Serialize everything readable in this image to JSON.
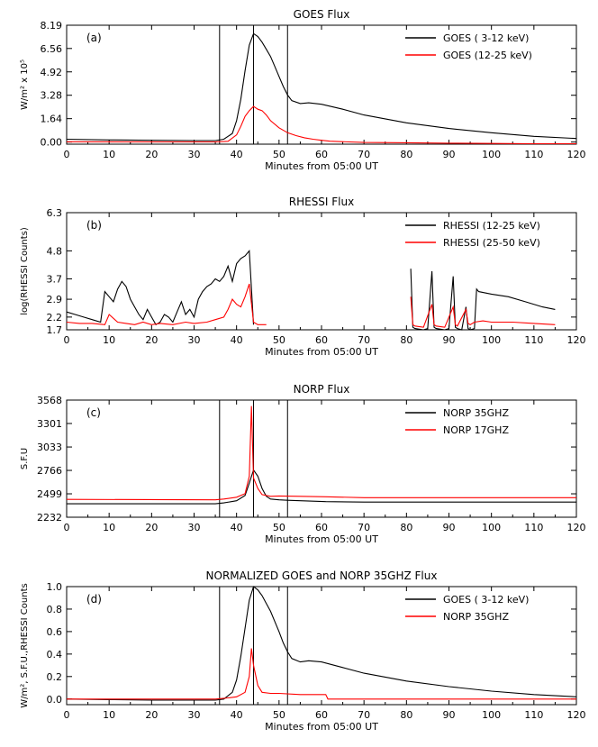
{
  "chart_data": [
    {
      "id": "a",
      "type": "line",
      "panel_label": "(a)",
      "title": "GOES Flux",
      "xlabel": "Minutes from 05:00 UT",
      "ylabel": "W/m² x 10⁵",
      "xlim": [
        0,
        120
      ],
      "ylim": [
        -0.15,
        8.19
      ],
      "xticks": [
        0,
        10,
        20,
        30,
        40,
        50,
        60,
        70,
        80,
        90,
        100,
        110,
        120
      ],
      "yticks": [
        "0.00",
        "1.64",
        "3.28",
        "4.92",
        "6.56",
        "8.19"
      ],
      "vlines": [
        36,
        44,
        52
      ],
      "legend": "top-right",
      "series": [
        {
          "name": "GOES ( 3-12 keV)",
          "color": "#000000",
          "x": [
            0,
            10,
            20,
            30,
            35,
            37,
            39,
            40,
            41,
            42,
            43,
            44,
            45,
            46,
            47,
            48,
            49,
            50,
            51,
            52,
            53,
            55,
            57,
            60,
            65,
            70,
            80,
            90,
            100,
            110,
            120
          ],
          "y": [
            0.2,
            0.15,
            0.12,
            0.1,
            0.1,
            0.2,
            0.6,
            1.5,
            3.0,
            5.0,
            6.8,
            7.6,
            7.4,
            7.0,
            6.5,
            6.0,
            5.3,
            4.6,
            3.9,
            3.3,
            2.9,
            2.7,
            2.75,
            2.65,
            2.3,
            1.9,
            1.35,
            0.95,
            0.65,
            0.4,
            0.25
          ]
        },
        {
          "name": "GOES (12-25 keV)",
          "color": "#ff0000",
          "x": [
            0,
            20,
            35,
            38,
            40,
            41,
            42,
            43,
            44,
            45,
            46,
            47,
            48,
            50,
            52,
            54,
            56,
            58,
            60,
            62,
            70,
            80,
            90,
            100,
            110,
            120
          ],
          "y": [
            0.02,
            0.01,
            0.01,
            0.05,
            0.5,
            1.1,
            1.8,
            2.2,
            2.5,
            2.3,
            2.2,
            1.9,
            1.5,
            1.0,
            0.65,
            0.45,
            0.3,
            0.2,
            0.12,
            0.06,
            -0.03,
            -0.05,
            -0.08,
            -0.1,
            -0.12,
            -0.12
          ]
        }
      ]
    },
    {
      "id": "b",
      "type": "line",
      "panel_label": "(b)",
      "title": "RHESSI Flux",
      "xlabel": "Minutes from 05:00 UT",
      "ylabel": "log(RHESSI Counts)",
      "xlim": [
        0,
        120
      ],
      "ylim": [
        1.7,
        6.3
      ],
      "xticks": [
        0,
        10,
        20,
        30,
        40,
        50,
        60,
        70,
        80,
        90,
        100,
        110,
        120
      ],
      "yticks": [
        "1.7",
        "2.2",
        "2.9",
        "3.7",
        "4.8",
        "6.3"
      ],
      "legend": "top-right",
      "series": [
        {
          "name": "RHESSI (12-25 keV)",
          "color": "#000000",
          "segments": [
            {
              "x": [
                0,
                2,
                4,
                6,
                8,
                9,
                10,
                11,
                12,
                13,
                14,
                15,
                16,
                17,
                18,
                19,
                20,
                21,
                22,
                23,
                24,
                25,
                26,
                27,
                28,
                29,
                30,
                31,
                32,
                33,
                34,
                35,
                36,
                37,
                38,
                39,
                40,
                41,
                42,
                43,
                44
              ],
              "y": [
                2.4,
                2.3,
                2.2,
                2.1,
                2.0,
                3.2,
                3.0,
                2.8,
                3.3,
                3.6,
                3.4,
                2.9,
                2.6,
                2.3,
                2.1,
                2.5,
                2.2,
                1.9,
                2.0,
                2.3,
                2.2,
                2.0,
                2.4,
                2.8,
                2.3,
                2.5,
                2.2,
                2.9,
                3.2,
                3.4,
                3.5,
                3.7,
                3.6,
                3.8,
                4.2,
                3.6,
                4.3,
                4.5,
                4.6,
                4.8,
                1.9
              ]
            },
            {
              "x": [
                81,
                81.5,
                82,
                84,
                85,
                86,
                86.5,
                87,
                89,
                90,
                91,
                91.5,
                92,
                93,
                94,
                94.5,
                95,
                96,
                96.5,
                97,
                100,
                104,
                108,
                112,
                115
              ],
              "y": [
                4.1,
                1.8,
                1.75,
                1.7,
                1.75,
                4.0,
                1.8,
                1.75,
                1.7,
                1.75,
                3.8,
                1.8,
                1.75,
                1.7,
                2.6,
                1.75,
                1.7,
                1.75,
                3.3,
                3.2,
                3.1,
                3.0,
                2.8,
                2.6,
                2.5
              ]
            }
          ]
        },
        {
          "name": "RHESSI (25-50 keV)",
          "color": "#ff0000",
          "segments": [
            {
              "x": [
                0,
                3,
                6,
                9,
                10,
                12,
                14,
                16,
                18,
                20,
                22,
                25,
                28,
                30,
                33,
                35,
                37,
                38,
                39,
                40,
                41,
                42,
                43,
                44,
                45,
                47
              ],
              "y": [
                2.0,
                1.95,
                1.95,
                1.9,
                2.3,
                2.0,
                1.95,
                1.9,
                2.0,
                1.9,
                1.95,
                1.9,
                2.0,
                1.95,
                2.0,
                2.1,
                2.2,
                2.5,
                2.9,
                2.7,
                2.6,
                3.0,
                3.5,
                2.0,
                1.9,
                1.9
              ]
            },
            {
              "x": [
                81,
                81.5,
                82,
                84,
                86,
                86.5,
                87,
                89,
                91,
                91.5,
                92,
                94,
                94.5,
                95,
                96,
                98,
                100,
                105,
                110,
                115
              ],
              "y": [
                3.0,
                1.9,
                1.85,
                1.8,
                2.7,
                1.9,
                1.85,
                1.8,
                2.6,
                1.9,
                1.85,
                2.5,
                1.95,
                1.9,
                2.0,
                2.05,
                2.0,
                2.0,
                1.95,
                1.9
              ]
            }
          ]
        }
      ]
    },
    {
      "id": "c",
      "type": "line",
      "panel_label": "(c)",
      "title": "NORP Flux",
      "xlabel": "Minutes from 05:00 UT",
      "ylabel": "S.F.U",
      "xlim": [
        0,
        120
      ],
      "ylim": [
        2232,
        3568
      ],
      "xticks": [
        0,
        10,
        20,
        30,
        40,
        50,
        60,
        70,
        80,
        90,
        100,
        110,
        120
      ],
      "yticks": [
        "2232",
        "2499",
        "2766",
        "3033",
        "3301",
        "3568"
      ],
      "vlines": [
        36,
        44,
        52
      ],
      "legend": "top-right",
      "series": [
        {
          "name": "NORP 35GHZ",
          "color": "#000000",
          "x": [
            0,
            35,
            37,
            40,
            42,
            43,
            44,
            45,
            46,
            47,
            48,
            50,
            52,
            55,
            58,
            61,
            70,
            90,
            120
          ],
          "y": [
            2385,
            2385,
            2395,
            2420,
            2480,
            2620,
            2770,
            2700,
            2560,
            2470,
            2440,
            2430,
            2425,
            2420,
            2415,
            2410,
            2405,
            2405,
            2405
          ]
        },
        {
          "name": "NORP 17GHZ",
          "color": "#ff0000",
          "x": [
            0,
            35,
            37,
            40,
            42,
            43,
            43.5,
            44,
            45,
            46,
            48,
            50,
            55,
            61,
            70,
            90,
            120
          ],
          "y": [
            2435,
            2430,
            2440,
            2460,
            2500,
            2700,
            3500,
            2680,
            2560,
            2490,
            2470,
            2475,
            2470,
            2465,
            2455,
            2455,
            2455
          ]
        }
      ]
    },
    {
      "id": "d",
      "type": "line",
      "panel_label": "(d)",
      "title": "NORMALIZED GOES and NORP 35GHZ Flux",
      "xlabel": "Minutes from 05:00 UT",
      "ylabel": "W/m², S.F.U.,RHESSI Counts",
      "xlim": [
        0,
        120
      ],
      "ylim": [
        -0.05,
        1.0
      ],
      "xticks": [
        0,
        10,
        20,
        30,
        40,
        50,
        60,
        70,
        80,
        90,
        100,
        110,
        120
      ],
      "yticks": [
        "0.0",
        "0.2",
        "0.4",
        "0.6",
        "0.8",
        "1.0"
      ],
      "vlines": [
        36,
        44,
        52
      ],
      "legend": "top-right",
      "series": [
        {
          "name": "GOES ( 3-12 keV)",
          "color": "#000000",
          "x": [
            0,
            10,
            20,
            30,
            35,
            37,
            39,
            40,
            41,
            42,
            43,
            44,
            45,
            46,
            47,
            48,
            49,
            50,
            51,
            52,
            53,
            55,
            57,
            60,
            65,
            70,
            80,
            90,
            100,
            110,
            120
          ],
          "y": [
            0.0,
            -0.005,
            -0.01,
            -0.01,
            -0.01,
            0.0,
            0.06,
            0.17,
            0.38,
            0.63,
            0.88,
            1.0,
            0.97,
            0.92,
            0.85,
            0.78,
            0.69,
            0.6,
            0.5,
            0.42,
            0.36,
            0.33,
            0.34,
            0.33,
            0.28,
            0.23,
            0.16,
            0.11,
            0.07,
            0.04,
            0.02
          ]
        },
        {
          "name": "NORP 35GHZ",
          "color": "#ff0000",
          "x": [
            0,
            35,
            38,
            40,
            42,
            43,
            43.5,
            44,
            45,
            46,
            48,
            50,
            55,
            61,
            61.5,
            120
          ],
          "y": [
            0.0,
            0.0,
            0.01,
            0.02,
            0.06,
            0.2,
            0.45,
            0.3,
            0.12,
            0.06,
            0.05,
            0.05,
            0.04,
            0.04,
            0.0,
            0.0
          ]
        }
      ]
    }
  ]
}
